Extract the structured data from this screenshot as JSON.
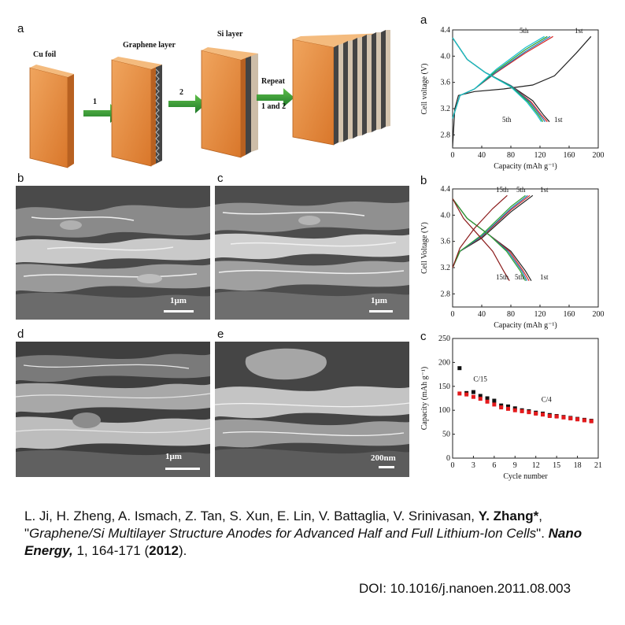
{
  "schematic": {
    "panel_label": "a",
    "cu_foil": "Cu foil",
    "graphene_layer": "Graphene layer",
    "si_layer": "Si layer",
    "step1": "1",
    "step2": "2",
    "repeat_line1": "Repeat",
    "repeat_line2": "1 and 2"
  },
  "sem": {
    "b": {
      "label": "b",
      "scale": "1μm"
    },
    "c": {
      "label": "c",
      "scale": "1μm"
    },
    "d": {
      "label": "d",
      "scale": "1μm"
    },
    "e": {
      "label": "e",
      "scale": "200nm"
    }
  },
  "chart_data": [
    {
      "type": "line",
      "panel_label": "a",
      "xlabel": "Capacity (mAh g⁻¹)",
      "ylabel": "Cell voltage (V)",
      "xlim": [
        0,
        200
      ],
      "ylim": [
        2.6,
        4.4
      ],
      "xticks": [
        "0",
        "40",
        "80",
        "120",
        "160",
        "200"
      ],
      "yticks": [
        "2.8",
        "3.2",
        "3.6",
        "4.0",
        "4.4"
      ],
      "annotations": [
        "5th",
        "1st",
        "5th",
        "1st"
      ],
      "series": [
        {
          "color": "#222222",
          "charge": [
            [
              0,
              2.62
            ],
            [
              3,
              3.2
            ],
            [
              8,
              3.4
            ],
            [
              30,
              3.46
            ],
            [
              70,
              3.5
            ],
            [
              110,
              3.56
            ],
            [
              140,
              3.7
            ],
            [
              170,
              4.05
            ],
            [
              190,
              4.3
            ]
          ],
          "discharge": [
            [
              0,
              4.28
            ],
            [
              20,
              3.95
            ],
            [
              45,
              3.75
            ],
            [
              80,
              3.55
            ],
            [
              110,
              3.32
            ],
            [
              125,
              3.1
            ],
            [
              133,
              3.0
            ]
          ]
        },
        {
          "color": "#d62728",
          "charge": [
            [
              0,
              3.05
            ],
            [
              10,
              3.4
            ],
            [
              30,
              3.5
            ],
            [
              60,
              3.75
            ],
            [
              100,
              4.05
            ],
            [
              138,
              4.3
            ]
          ],
          "discharge": [
            [
              0,
              4.28
            ],
            [
              20,
              3.95
            ],
            [
              45,
              3.75
            ],
            [
              80,
              3.55
            ],
            [
              108,
              3.3
            ],
            [
              122,
              3.1
            ],
            [
              130,
              3.0
            ]
          ]
        },
        {
          "color": "#1f77b4",
          "charge": [
            [
              0,
              3.05
            ],
            [
              10,
              3.4
            ],
            [
              30,
              3.5
            ],
            [
              60,
              3.76
            ],
            [
              100,
              4.07
            ],
            [
              134,
              4.3
            ]
          ],
          "discharge": [
            [
              0,
              4.28
            ],
            [
              20,
              3.95
            ],
            [
              45,
              3.75
            ],
            [
              80,
              3.55
            ],
            [
              106,
              3.3
            ],
            [
              120,
              3.1
            ],
            [
              127,
              3.0
            ]
          ]
        },
        {
          "color": "#2ca02c",
          "charge": [
            [
              0,
              3.05
            ],
            [
              10,
              3.4
            ],
            [
              30,
              3.5
            ],
            [
              60,
              3.78
            ],
            [
              100,
              4.1
            ],
            [
              130,
              4.3
            ]
          ],
          "discharge": [
            [
              0,
              4.28
            ],
            [
              20,
              3.95
            ],
            [
              45,
              3.75
            ],
            [
              80,
              3.54
            ],
            [
              104,
              3.3
            ],
            [
              118,
              3.1
            ],
            [
              124,
              3.0
            ]
          ]
        },
        {
          "color": "#17becf",
          "charge": [
            [
              0,
              3.05
            ],
            [
              10,
              3.4
            ],
            [
              30,
              3.5
            ],
            [
              60,
              3.8
            ],
            [
              100,
              4.13
            ],
            [
              126,
              4.3
            ]
          ],
          "discharge": [
            [
              0,
              4.28
            ],
            [
              20,
              3.95
            ],
            [
              45,
              3.75
            ],
            [
              80,
              3.53
            ],
            [
              102,
              3.3
            ],
            [
              116,
              3.1
            ],
            [
              122,
              3.0
            ]
          ]
        }
      ]
    },
    {
      "type": "line",
      "panel_label": "b",
      "xlabel": "Capacity (mAh g⁻¹)",
      "ylabel": "Cell Voltage (V)",
      "xlim": [
        0,
        200
      ],
      "ylim": [
        2.6,
        4.4
      ],
      "xticks": [
        "0",
        "40",
        "80",
        "120",
        "160",
        "200"
      ],
      "yticks": [
        "2.8",
        "3.2",
        "3.6",
        "4.0",
        "4.4"
      ],
      "annotations": [
        "15th",
        "5th",
        "1st",
        "15th",
        "5th",
        "1st"
      ],
      "series": [
        {
          "color": "#222222",
          "charge": [
            [
              0,
              3.2
            ],
            [
              10,
              3.45
            ],
            [
              40,
              3.65
            ],
            [
              80,
              4.05
            ],
            [
              110,
              4.3
            ]
          ],
          "discharge": [
            [
              0,
              4.25
            ],
            [
              20,
              3.95
            ],
            [
              50,
              3.7
            ],
            [
              80,
              3.45
            ],
            [
              100,
              3.15
            ],
            [
              108,
              3.0
            ]
          ]
        },
        {
          "color": "#d62728",
          "charge": [
            [
              0,
              3.2
            ],
            [
              10,
              3.45
            ],
            [
              40,
              3.67
            ],
            [
              80,
              4.08
            ],
            [
              106,
              4.3
            ]
          ],
          "discharge": [
            [
              0,
              4.25
            ],
            [
              20,
              3.95
            ],
            [
              50,
              3.7
            ],
            [
              78,
              3.45
            ],
            [
              97,
              3.15
            ],
            [
              105,
              3.0
            ]
          ]
        },
        {
          "color": "#1f77b4",
          "charge": [
            [
              0,
              3.2
            ],
            [
              10,
              3.45
            ],
            [
              40,
              3.68
            ],
            [
              80,
              4.1
            ],
            [
              103,
              4.3
            ]
          ],
          "discharge": [
            [
              0,
              4.25
            ],
            [
              20,
              3.95
            ],
            [
              50,
              3.7
            ],
            [
              76,
              3.45
            ],
            [
              95,
              3.15
            ],
            [
              102,
              3.0
            ]
          ]
        },
        {
          "color": "#2ca02c",
          "charge": [
            [
              0,
              3.2
            ],
            [
              10,
              3.45
            ],
            [
              40,
              3.7
            ],
            [
              80,
              4.13
            ],
            [
              100,
              4.3
            ]
          ],
          "discharge": [
            [
              0,
              4.25
            ],
            [
              20,
              3.95
            ],
            [
              50,
              3.7
            ],
            [
              74,
              3.45
            ],
            [
              93,
              3.15
            ],
            [
              100,
              3.0
            ]
          ]
        },
        {
          "color": "#8b1a1a",
          "charge": [
            [
              0,
              3.2
            ],
            [
              10,
              3.5
            ],
            [
              30,
              3.8
            ],
            [
              55,
              4.1
            ],
            [
              75,
              4.3
            ]
          ],
          "discharge": [
            [
              0,
              4.25
            ],
            [
              15,
              3.95
            ],
            [
              35,
              3.7
            ],
            [
              55,
              3.45
            ],
            [
              70,
              3.15
            ],
            [
              78,
              3.0
            ]
          ]
        }
      ]
    },
    {
      "type": "scatter",
      "panel_label": "c",
      "xlabel": "Cycle number",
      "ylabel": "Capacity (mAh g⁻¹)",
      "xlim": [
        0,
        21
      ],
      "ylim": [
        0,
        250
      ],
      "xticks": [
        "0",
        "3",
        "6",
        "9",
        "12",
        "15",
        "18",
        "21"
      ],
      "yticks": [
        "0",
        "50",
        "100",
        "150",
        "200",
        "250"
      ],
      "annotations": [
        "C/15",
        "C/4"
      ],
      "series": [
        {
          "color": "#111111",
          "x": [
            1,
            2,
            3,
            4,
            5,
            6,
            7,
            8,
            9,
            10,
            11,
            12,
            13,
            14,
            15,
            16,
            17,
            18,
            19,
            20
          ],
          "y": [
            188,
            136,
            138,
            130,
            125,
            120,
            110,
            108,
            104,
            100,
            98,
            95,
            93,
            90,
            88,
            86,
            84,
            82,
            80,
            78
          ]
        },
        {
          "color": "#e41a1c",
          "x": [
            1,
            2,
            3,
            4,
            5,
            6,
            7,
            8,
            9,
            10,
            11,
            12,
            13,
            14,
            15,
            16,
            17,
            18,
            19,
            20
          ],
          "y": [
            135,
            133,
            128,
            124,
            118,
            112,
            106,
            103,
            100,
            98,
            96,
            93,
            91,
            88,
            87,
            85,
            83,
            81,
            79,
            77
          ]
        }
      ]
    }
  ],
  "citation": {
    "authors": "L. Ji, H. Zheng, A. Ismach, Z. Tan, S. Xun, E. Lin, V. Battaglia, V. Srinivasan, ",
    "corresponding": "Y. Zhang*",
    "comma": ",",
    "title_q1": "\"",
    "title": "Graphene/Si Multilayer Structure Anodes for Advanced Half and Full Lithium-Ion Cells",
    "title_q2": "\". ",
    "journal": "Nano Energy,",
    "volpages": " 1, 164-171 (",
    "year": "2012",
    "tail": ").",
    "doi": "DOI: 10.1016/j.nanoen.2011.08.003"
  }
}
